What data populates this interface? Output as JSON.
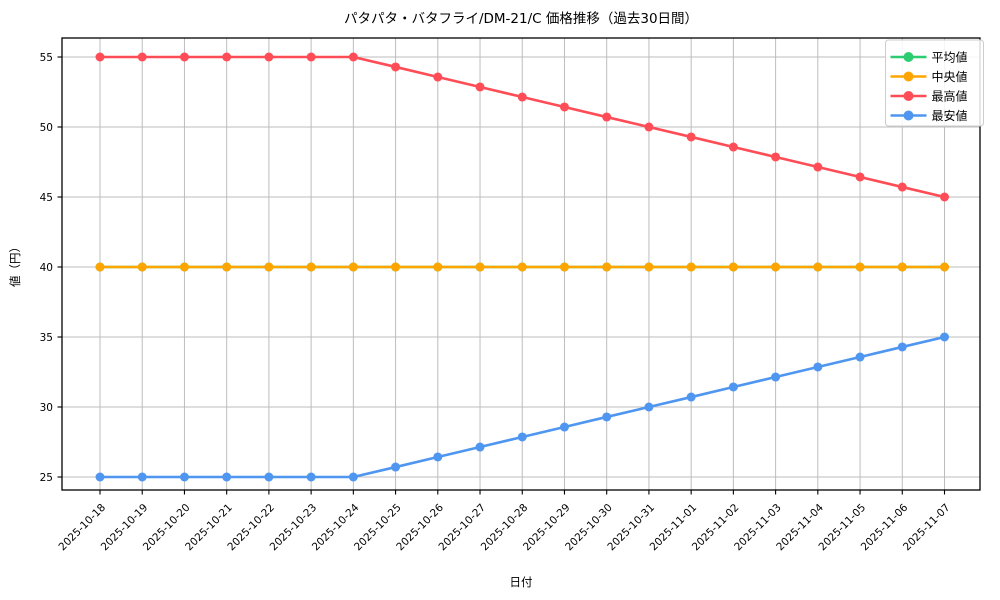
{
  "title": "パタパタ・バタフライ/DM-21/C 価格推移（過去30日間）",
  "chart_data": {
    "type": "line",
    "title": "パタパタ・バタフライ/DM-21/C 価格推移（過去30日間）",
    "xlabel": "日付",
    "ylabel": "値（円）",
    "x": [
      "2025-10-18",
      "2025-10-19",
      "2025-10-20",
      "2025-10-21",
      "2025-10-22",
      "2025-10-23",
      "2025-10-24",
      "2025-10-25",
      "2025-10-26",
      "2025-10-27",
      "2025-10-28",
      "2025-10-29",
      "2025-10-30",
      "2025-10-31",
      "2025-11-01",
      "2025-11-02",
      "2025-11-03",
      "2025-11-04",
      "2025-11-05",
      "2025-11-06",
      "2025-11-07"
    ],
    "series": [
      {
        "name": "平均値",
        "color": "#2ecc71",
        "values": [
          40,
          40,
          40,
          40,
          40,
          40,
          40,
          40,
          40,
          40,
          40,
          40,
          40,
          40,
          40,
          40,
          40,
          40,
          40,
          40,
          40
        ]
      },
      {
        "name": "中央値",
        "color": "#ffa502",
        "values": [
          40,
          40,
          40,
          40,
          40,
          40,
          40,
          40,
          40,
          40,
          40,
          40,
          40,
          40,
          40,
          40,
          40,
          40,
          40,
          40,
          40
        ]
      },
      {
        "name": "最高値",
        "color": "#ff4d57",
        "values": [
          55,
          55,
          55,
          55,
          55,
          55,
          55,
          54.29,
          53.57,
          52.86,
          52.14,
          51.43,
          50.71,
          50,
          49.29,
          48.57,
          47.86,
          47.14,
          46.43,
          45.71,
          45
        ]
      },
      {
        "name": "最安値",
        "color": "#4f96f0",
        "values": [
          25,
          25,
          25,
          25,
          25,
          25,
          25,
          25.71,
          26.43,
          27.14,
          27.86,
          28.57,
          29.29,
          30,
          30.71,
          31.43,
          32.14,
          32.86,
          33.57,
          34.29,
          35
        ]
      }
    ],
    "yticks": [
      25,
      30,
      35,
      40,
      45,
      50,
      55
    ],
    "ylim": [
      24.07,
      56.36
    ],
    "grid": true,
    "legend_position": "upper right",
    "legend": [
      "平均値",
      "中央値",
      "最高値",
      "最安値"
    ],
    "note_draw_order": "平均値 is drawn first and fully overlapped by 中央値 at 40"
  },
  "colors": {
    "grid": "#bdbdbd",
    "spine": "#000000",
    "legend_border": "#cccccc",
    "legend_bg_alpha": "rgba(255,255,255,0.85)"
  }
}
